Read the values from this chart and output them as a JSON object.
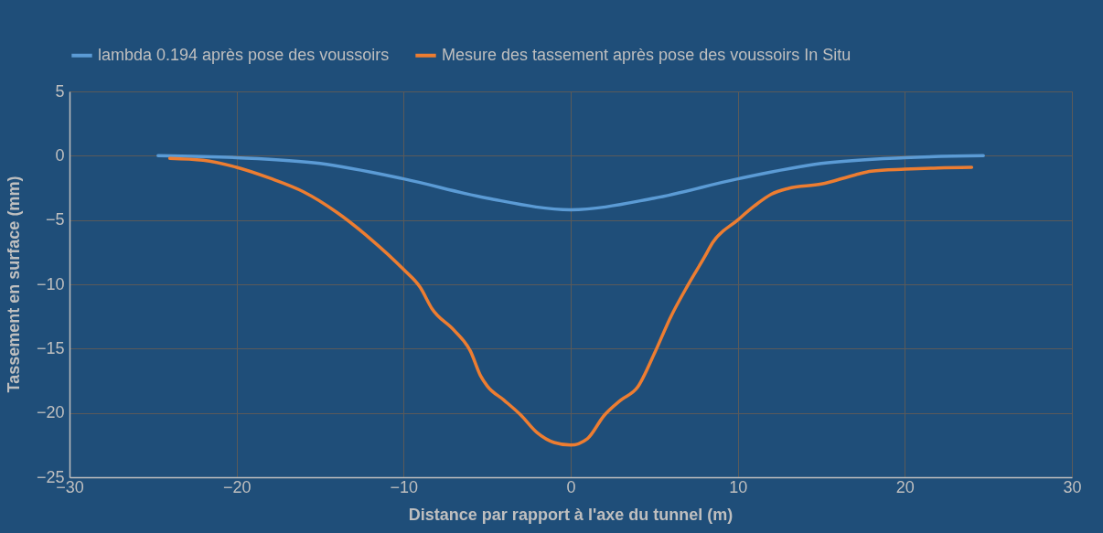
{
  "chart_data": {
    "type": "line",
    "xlabel": "Distance par rapport à l'axe du tunnel (m)",
    "ylabel": "Tassement en surface (mm)",
    "xlim": [
      -30,
      30
    ],
    "xticks": [
      -30,
      -20,
      -10,
      0,
      10,
      20,
      30
    ],
    "ylim": [
      -25,
      5
    ],
    "yticks": [
      5,
      0,
      -5,
      -10,
      -15,
      -20,
      -25
    ],
    "grid": true,
    "legend": "top",
    "line_style": "solid",
    "marker": "none",
    "series": [
      {
        "name": "lambda 0.194 après pose des voussoirs",
        "color": "#5b9bd5",
        "x": [
          -24.7,
          -20,
          -15,
          -10,
          -5,
          0,
          5,
          10,
          15,
          20,
          24.7
        ],
        "values": [
          0,
          -0.15,
          -0.6,
          -1.8,
          -3.3,
          -4.2,
          -3.3,
          -1.8,
          -0.6,
          -0.15,
          0
        ]
      },
      {
        "name": "Mesure des tassement après pose des voussoirs In Situ",
        "color": "#ed7d31",
        "x": [
          -24,
          -22,
          -20,
          -18,
          -16,
          -14,
          -12,
          -10,
          -9,
          -8.3,
          -7,
          -6,
          -5.4,
          -5,
          -4,
          -3,
          -2,
          -1,
          0,
          1,
          2,
          3,
          4,
          5,
          6,
          7,
          8,
          8.5,
          10,
          11,
          12,
          13,
          15,
          17,
          18,
          20,
          22,
          24
        ],
        "values": [
          -0.2,
          -0.35,
          -0.9,
          -1.75,
          -2.8,
          -4.4,
          -6.45,
          -8.85,
          -10.25,
          -11.9,
          -13.55,
          -15.2,
          -17.1,
          -17.9,
          -19,
          -20.15,
          -21.55,
          -22.3,
          -22.5,
          -22,
          -20.2,
          -19,
          -18,
          -15.4,
          -12.5,
          -10.1,
          -7.9,
          -6.75,
          -5,
          -3.9,
          -3,
          -2.55,
          -2.2,
          -1.5,
          -1.2,
          -1.05,
          -0.95,
          -0.9
        ]
      }
    ]
  }
}
